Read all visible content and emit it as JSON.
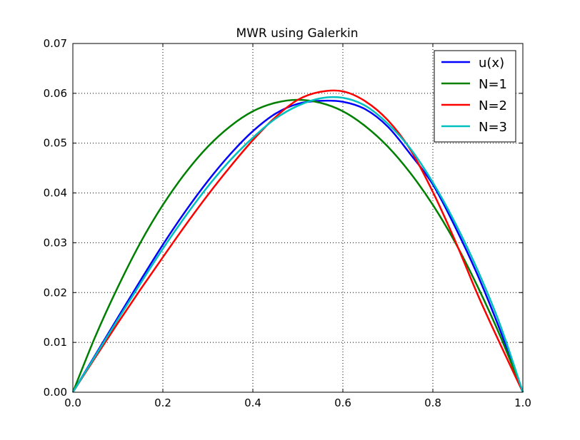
{
  "chart_data": {
    "type": "line",
    "title": "MWR using Galerkin",
    "xlabel": "",
    "ylabel": "",
    "xlim": [
      0.0,
      1.0
    ],
    "ylim": [
      0.0,
      0.07
    ],
    "x_ticks": [
      0.0,
      0.2,
      0.4,
      0.6,
      0.8,
      1.0
    ],
    "y_ticks": [
      0.0,
      0.01,
      0.02,
      0.03,
      0.04,
      0.05,
      0.06,
      0.07
    ],
    "x_tick_labels": [
      "0.0",
      "0.2",
      "0.4",
      "0.6",
      "0.8",
      "1.0"
    ],
    "y_tick_labels": [
      "0.00",
      "0.01",
      "0.02",
      "0.03",
      "0.04",
      "0.05",
      "0.06",
      "0.07"
    ],
    "grid": true,
    "legend_position": "top-right",
    "x": [
      0.0,
      0.05,
      0.1,
      0.15,
      0.2,
      0.25,
      0.3,
      0.35,
      0.4,
      0.45,
      0.5,
      0.55,
      0.6,
      0.65,
      0.7,
      0.75,
      0.8,
      0.85,
      0.9,
      0.95,
      1.0
    ],
    "series": [
      {
        "name": "u(x)",
        "color": "#0000ff",
        "values": [
          0.0,
          0.0075,
          0.015,
          0.0224,
          0.0296,
          0.0363,
          0.0424,
          0.0478,
          0.0524,
          0.0559,
          0.0579,
          0.0585,
          0.0583,
          0.0568,
          0.0533,
          0.0478,
          0.0417,
          0.0331,
          0.0234,
          0.0123,
          0.0
        ]
      },
      {
        "name": "N=1",
        "color": "#008000",
        "values": [
          0.0,
          0.0112,
          0.0211,
          0.03,
          0.0376,
          0.044,
          0.0493,
          0.0534,
          0.0564,
          0.0581,
          0.0587,
          0.0581,
          0.0564,
          0.0534,
          0.0493,
          0.044,
          0.0376,
          0.03,
          0.0211,
          0.0112,
          0.0
        ]
      },
      {
        "name": "N=2",
        "color": "#ff0000",
        "values": [
          0.0,
          0.007,
          0.0139,
          0.0206,
          0.0271,
          0.0335,
          0.0396,
          0.0453,
          0.0506,
          0.0552,
          0.0587,
          0.0603,
          0.0604,
          0.0584,
          0.0546,
          0.0487,
          0.0402,
          0.0303,
          0.0195,
          0.0096,
          0.0
        ]
      },
      {
        "name": "N=3",
        "color": "#00bfbf",
        "values": [
          0.0,
          0.0073,
          0.0146,
          0.0218,
          0.0288,
          0.0353,
          0.0413,
          0.0466,
          0.0511,
          0.0549,
          0.0575,
          0.059,
          0.0591,
          0.0575,
          0.0539,
          0.0489,
          0.0421,
          0.0339,
          0.0244,
          0.0134,
          0.0
        ]
      }
    ]
  }
}
